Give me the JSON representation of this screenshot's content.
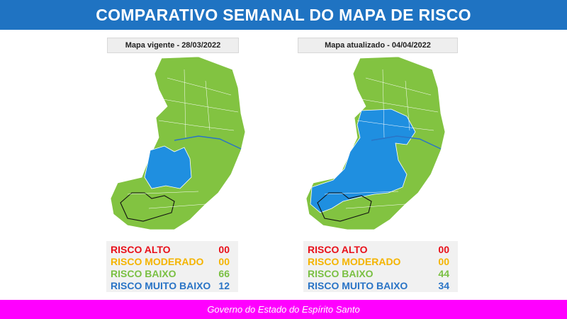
{
  "header": {
    "title": "COMPARATIVO SEMANAL DO MAPA DE RISCO"
  },
  "colors": {
    "alto": "#e8101a",
    "moderado": "#f4b400",
    "baixo": "#7ac043",
    "muito_baixo": "#2a74c6",
    "map_green": "#82c341",
    "map_blue": "#1f8fe0"
  },
  "left": {
    "label": "Mapa vigente - 28/03/2022",
    "legend": [
      {
        "name": "RISCO ALTO",
        "value": "00",
        "level": "alto"
      },
      {
        "name": "RISCO MODERADO",
        "value": "00",
        "level": "moderado"
      },
      {
        "name": "RISCO BAIXO",
        "value": "66",
        "level": "baixo"
      },
      {
        "name": "RISCO MUITO BAIXO",
        "value": "12",
        "level": "muito_baixo"
      }
    ]
  },
  "right": {
    "label": "Mapa atualizado - 04/04/2022",
    "legend": [
      {
        "name": "RISCO ALTO",
        "value": "00",
        "level": "alto"
      },
      {
        "name": "RISCO MODERADO",
        "value": "00",
        "level": "moderado"
      },
      {
        "name": "RISCO BAIXO",
        "value": "44",
        "level": "baixo"
      },
      {
        "name": "RISCO MUITO BAIXO",
        "value": "34",
        "level": "muito_baixo"
      }
    ]
  },
  "footer": {
    "text": "Governo do Estado do Espírito Santo"
  }
}
